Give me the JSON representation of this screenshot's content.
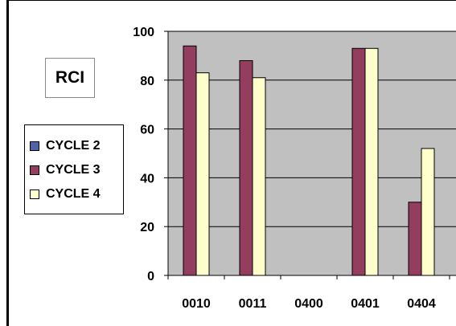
{
  "chart_data": {
    "type": "bar",
    "title": "RCI",
    "categories": [
      "0010",
      "0011",
      "0400",
      "0401",
      "0404"
    ],
    "series": [
      {
        "name": "CYCLE 2",
        "color": "#4f63a8",
        "values": [
          null,
          null,
          null,
          null,
          null
        ]
      },
      {
        "name": "CYCLE 3",
        "color": "#933d5f",
        "values": [
          94,
          88,
          null,
          93,
          30
        ]
      },
      {
        "name": "CYCLE 4",
        "color": "#ffffcc",
        "values": [
          83,
          81,
          null,
          93,
          52
        ]
      }
    ],
    "ylim": [
      0,
      100
    ],
    "yticks": [
      0,
      20,
      40,
      60,
      80,
      100
    ],
    "grid": true,
    "plot_background": "#c0c0c0",
    "legend_placement": "left"
  }
}
